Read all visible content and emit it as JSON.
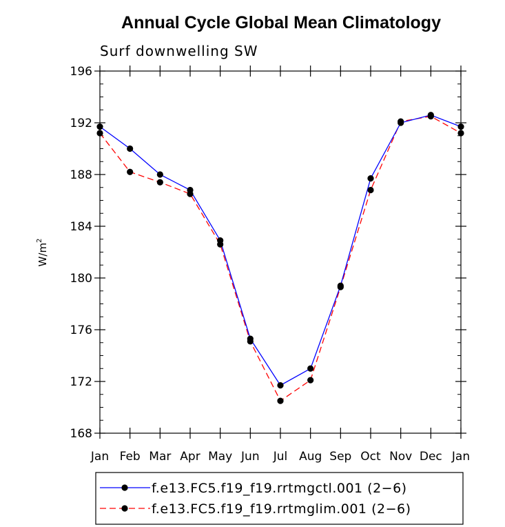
{
  "chart_data": {
    "type": "line",
    "title": "Annual Cycle Global Mean Climatology",
    "subtitle": "Surf downwelling SW",
    "ylabel": "W/m",
    "ylabel_sup": "2",
    "xlabel": "",
    "ylim": [
      168,
      196
    ],
    "yticks": [
      168,
      172,
      176,
      180,
      184,
      188,
      192,
      196
    ],
    "yminor_step": 1,
    "categories": [
      "Jan",
      "Feb",
      "Mar",
      "Apr",
      "May",
      "Jun",
      "Jul",
      "Aug",
      "Sep",
      "Oct",
      "Nov",
      "Dec",
      "Jan"
    ],
    "series": [
      {
        "name": "f.e13.FC5.f19_f19.rrtmgctl.001 (2−6)",
        "color": "#0000ff",
        "dash": "solid",
        "values": [
          191.7,
          190.0,
          188.0,
          186.8,
          182.9,
          175.3,
          171.7,
          173.0,
          179.4,
          187.7,
          192.0,
          192.6,
          191.7
        ]
      },
      {
        "name": "f.e13.FC5.f19_f19.rrtmglim.001 (2−6)",
        "color": "#ff0000",
        "dash": "dashed",
        "values": [
          191.2,
          188.2,
          187.4,
          186.5,
          182.6,
          175.1,
          170.5,
          172.1,
          179.3,
          186.8,
          192.1,
          192.5,
          191.2
        ]
      }
    ]
  }
}
